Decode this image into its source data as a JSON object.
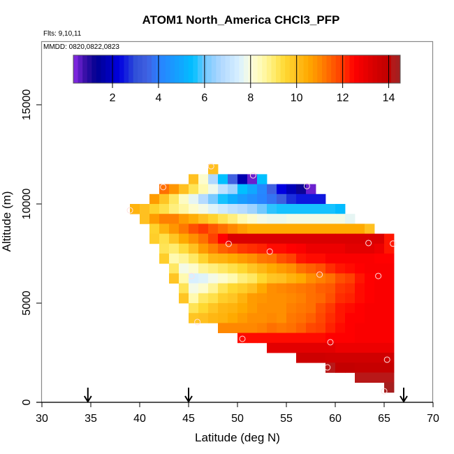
{
  "chart_data": {
    "type": "heatmap",
    "title": "ATOM1 North_America CHCl3_PFP",
    "annotations": {
      "flights": "Flts: 9,10,11",
      "dates": "MMDD: 0820,0822,0823"
    },
    "xlabel": "Latitude (deg N)",
    "ylabel": "Altitude (m)",
    "xlim": [
      30,
      70
    ],
    "ylim": [
      0,
      18200
    ],
    "x_ticks": [
      30,
      35,
      40,
      45,
      50,
      55,
      60,
      65,
      70
    ],
    "y_ticks": [
      0,
      5000,
      10000,
      15000
    ],
    "grid": false,
    "colorbar": {
      "range": [
        0.3,
        14.5
      ],
      "ticks": [
        2,
        4,
        6,
        8,
        10,
        12,
        14
      ],
      "placement": "top-inside",
      "stops": [
        [
          0.3,
          "#8b2be8"
        ],
        [
          0.8,
          "#3a10a8"
        ],
        [
          1.3,
          "#000090"
        ],
        [
          1.9,
          "#0000c0"
        ],
        [
          2.3,
          "#0000e0"
        ],
        [
          3.0,
          "#3050d8"
        ],
        [
          3.5,
          "#4060e0"
        ],
        [
          4.0,
          "#2a80ff"
        ],
        [
          5.0,
          "#10a8ff"
        ],
        [
          5.5,
          "#00c0ff"
        ],
        [
          6.0,
          "#70c8ff"
        ],
        [
          6.7,
          "#b0d8ff"
        ],
        [
          7.5,
          "#d8f0ff"
        ],
        [
          8.0,
          "#fbfde0"
        ],
        [
          8.5,
          "#fffab0"
        ],
        [
          9.0,
          "#ffec70"
        ],
        [
          9.5,
          "#ffd830"
        ],
        [
          10.0,
          "#ffc020"
        ],
        [
          10.5,
          "#ffaa00"
        ],
        [
          11.0,
          "#ff8800"
        ],
        [
          11.5,
          "#ff6000"
        ],
        [
          12.0,
          "#ff3800"
        ],
        [
          12.5,
          "#ff0000"
        ],
        [
          13.0,
          "#e80000"
        ],
        [
          13.5,
          "#d00000"
        ],
        [
          14.0,
          "#c00000"
        ],
        [
          14.1,
          "#b81818"
        ],
        [
          14.5,
          "#a02020"
        ]
      ]
    },
    "cell_size": {
      "lat_deg": 1,
      "alt_m": 500
    },
    "rows": [
      {
        "alt": 11500,
        "lat_start": 47,
        "values": [
          10
        ]
      },
      {
        "alt": 11000,
        "lat_start": 45,
        "values": [
          10,
          8.2,
          6.7,
          5.5,
          3.5,
          1.7,
          0.5,
          5.5
        ]
      },
      {
        "alt": 10500,
        "lat_start": 42,
        "values": [
          11.3,
          10.8,
          10,
          9.2,
          8.5,
          7.8,
          7,
          6.5,
          5.5,
          5,
          4.2,
          3.5,
          2.3,
          1.8,
          1.2,
          0.5
        ]
      },
      {
        "alt": 10000,
        "lat_start": 41,
        "values": [
          10.7,
          9.9,
          9.1,
          8.3,
          7.7,
          6.8,
          6.1,
          5.6,
          5.1,
          4.7,
          4.4,
          4.1,
          3.8,
          3.4,
          2.7,
          2.5,
          2.5,
          2.5
        ]
      },
      {
        "alt": 9500,
        "lat_start": 39,
        "values": [
          10.3,
          10,
          9.6,
          9.3,
          8.9,
          8.6,
          8.2,
          7.9,
          7.6,
          7.3,
          7,
          6.8,
          6.5,
          6,
          5.7,
          5.6,
          5.6,
          5.6,
          5.6,
          5.6,
          5.6,
          5.4
        ]
      },
      {
        "alt": 9000,
        "lat_start": 40,
        "values": [
          10,
          10.7,
          11.1,
          11.1,
          10.7,
          10.4,
          10,
          9.6,
          9.2,
          8.9,
          8.5,
          8.2,
          7.9,
          7.8,
          7.8,
          7.9,
          7.9,
          7.9,
          7.9,
          7.9,
          7.9,
          7.7
        ]
      },
      {
        "alt": 8500,
        "lat_start": 41,
        "values": [
          9.6,
          10.3,
          10.8,
          11.2,
          11.7,
          12,
          11.6,
          11.3,
          11,
          10.7,
          10.5,
          10.5,
          10.5,
          10.5,
          10.5,
          10.5,
          10.5,
          10.5,
          10.5,
          10.5,
          10.5,
          10.5,
          10
        ]
      },
      {
        "alt": 8000,
        "lat_start": 41,
        "values": [
          9.7,
          9.3,
          9.9,
          10.5,
          10.9,
          11.3,
          11.9,
          12.5,
          13.3,
          13.3,
          13.3,
          13.3,
          13.3,
          13.3,
          13.3,
          13.3,
          13.3,
          13.3,
          13.3,
          13.3,
          13.3,
          13.3,
          13.3,
          13.3,
          12.3
        ]
      },
      {
        "alt": 7500,
        "lat_start": 42,
        "values": [
          9.2,
          9,
          9.4,
          10,
          10.7,
          11.1,
          11.5,
          11.7,
          12,
          12.1,
          12.2,
          12.4,
          12.4,
          12.5,
          12.6,
          12.9,
          12.9,
          12.9,
          12.9,
          13.1,
          13.1,
          13.1,
          12.9,
          12.3
        ]
      },
      {
        "alt": 7000,
        "lat_start": 42,
        "values": [
          9.7,
          8.5,
          8.7,
          9.1,
          9.6,
          10.2,
          10.3,
          10.5,
          10.7,
          10.9,
          11.2,
          11.3,
          11.7,
          11.9,
          12.3,
          12.4,
          12.4,
          12.6,
          12.6,
          12.6,
          12.6,
          12.6,
          12.5,
          12.5
        ]
      },
      {
        "alt": 6500,
        "lat_start": 43,
        "values": [
          9.1,
          7.9,
          8.2,
          8.7,
          8.9,
          9.1,
          9.3,
          9.5,
          9.9,
          10.2,
          10.5,
          10.7,
          10.9,
          11.3,
          11.5,
          11.7,
          12.1,
          12.3,
          12.4,
          12.5,
          12.6,
          12.6,
          12.6
        ]
      },
      {
        "alt": 6000,
        "lat_start": 43,
        "values": [
          9.9,
          8.5,
          7.5,
          7.6,
          7.9,
          8.2,
          8.5,
          8.9,
          9.1,
          9.5,
          9.9,
          10,
          10.3,
          10.5,
          10.9,
          11.1,
          11.3,
          11.7,
          11.9,
          12.3,
          12.5,
          12.6,
          12.6
        ]
      },
      {
        "alt": 5500,
        "lat_start": 44,
        "values": [
          9.2,
          7.9,
          8.2,
          8.7,
          9.2,
          9.5,
          9.7,
          10,
          10.5,
          10.9,
          11,
          11.1,
          11.2,
          11.3,
          11.5,
          11.6,
          12,
          12.1,
          12.4,
          12.5,
          12.6,
          12.6
        ]
      },
      {
        "alt": 5000,
        "lat_start": 44,
        "values": [
          9.9,
          8.5,
          9.1,
          9.3,
          9.7,
          9.9,
          10.3,
          10.7,
          10.8,
          10.9,
          10.9,
          11,
          11.1,
          11.3,
          11.4,
          11.7,
          12.1,
          12.2,
          12.4,
          12.5,
          12.6,
          12.6
        ]
      },
      {
        "alt": 4500,
        "lat_start": 45,
        "values": [
          9.2,
          9.5,
          9.9,
          10.2,
          10.3,
          10.5,
          10.7,
          10.9,
          10.9,
          10.9,
          11.1,
          11.2,
          11.3,
          11.7,
          12,
          12.3,
          12.4,
          12.5,
          12.6,
          12.6,
          12.6
        ]
      },
      {
        "alt": 4000,
        "lat_start": 45,
        "values": [
          9.9,
          10,
          10.2,
          10.3,
          10.5,
          10.7,
          10.9,
          10.9,
          11,
          10.9,
          11.2,
          11.3,
          11.5,
          11.8,
          12.1,
          12.3,
          12.5,
          12.5,
          12.6,
          12.6,
          12.6
        ]
      },
      {
        "alt": 3500,
        "lat_start": 48,
        "values": [
          11,
          11,
          11,
          11,
          11.1,
          11.3,
          11.2,
          11.3,
          11.5,
          11.8,
          11.9,
          12.2,
          12.4,
          12.5,
          12.6,
          12.6,
          12.6,
          12.6
        ]
      },
      {
        "alt": 3000,
        "lat_start": 50,
        "values": [
          12.4,
          12.4,
          12.4,
          12.4,
          12.4,
          12.4,
          12.4,
          12.4,
          12.4,
          12.5,
          12.5,
          12.5,
          12.6,
          12.6,
          12.6,
          12.6
        ]
      },
      {
        "alt": 2500,
        "lat_start": 53,
        "values": [
          13.1,
          13.1,
          13.1,
          13.1,
          13.1,
          13.1,
          13.1,
          12.9,
          12.9,
          12.9,
          12.9,
          12.9,
          12.9
        ]
      },
      {
        "alt": 2000,
        "lat_start": 56,
        "values": [
          13.6,
          13.6,
          13.6,
          13.5,
          13.5,
          13.5,
          13.5,
          13.5,
          13.5,
          13.5
        ]
      },
      {
        "alt": 1500,
        "lat_start": 59,
        "values": [
          14.1,
          13.9,
          13.9,
          13.8,
          13.8,
          13.8,
          13.8
        ]
      },
      {
        "alt": 1000,
        "lat_start": 62,
        "values": [
          14.1,
          14.1,
          14.1,
          14.1
        ]
      },
      {
        "alt": 500,
        "lat_start": 65,
        "values": [
          14.4
        ]
      }
    ],
    "samples": [
      [
        47.3,
        11900
      ],
      [
        51.6,
        11440
      ],
      [
        42.4,
        10850
      ],
      [
        57.1,
        10900
      ],
      [
        39.0,
        9680
      ],
      [
        49.1,
        7990
      ],
      [
        53.3,
        7600
      ],
      [
        63.4,
        8030
      ],
      [
        65.9,
        8000
      ],
      [
        58.4,
        6440
      ],
      [
        64.4,
        6370
      ],
      [
        45.3,
        6370
      ],
      [
        45.9,
        4050
      ],
      [
        50.5,
        3200
      ],
      [
        59.5,
        3030
      ],
      [
        65.3,
        2150
      ],
      [
        59.2,
        1760
      ],
      [
        65.0,
        560
      ]
    ],
    "arrows_lat": [
      34.7,
      45.0,
      67.0
    ]
  }
}
